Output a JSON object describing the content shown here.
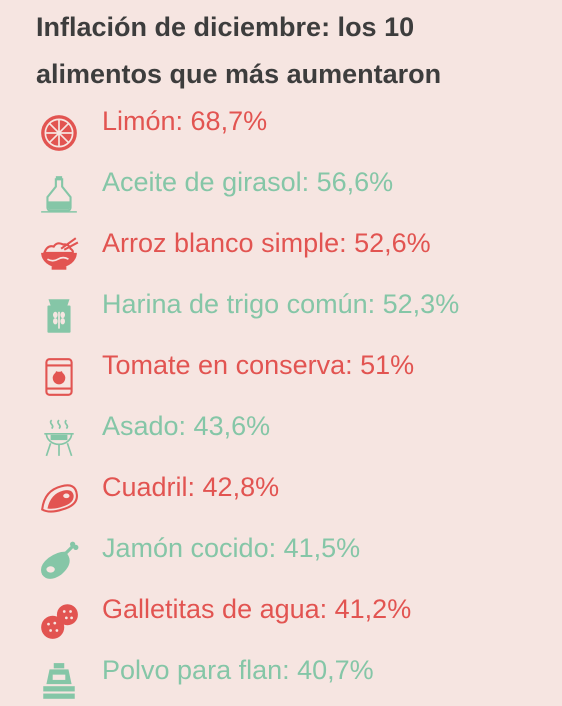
{
  "title": "Inflación de diciembre: los 10 alimentos que más aumentaron",
  "colors": {
    "red": "#e25451",
    "green": "#85c6a7",
    "title": "#3d3d3d",
    "background": "#f6e5e1"
  },
  "items": [
    {
      "label": "Limón: 68,7%",
      "icon": "lemon-slice-icon",
      "color": "red"
    },
    {
      "label": "Aceite de girasol: 56,6%",
      "icon": "oil-bottle-icon",
      "color": "green"
    },
    {
      "label": "Arroz blanco simple: 52,6%",
      "icon": "rice-bowl-icon",
      "color": "red"
    },
    {
      "label": "Harina de trigo común: 52,3%",
      "icon": "flour-bag-icon",
      "color": "green"
    },
    {
      "label": "Tomate en conserva: 51%",
      "icon": "canned-tomato-icon",
      "color": "red"
    },
    {
      "label": "Asado: 43,6%",
      "icon": "grill-icon",
      "color": "green"
    },
    {
      "label": "Cuadril: 42,8%",
      "icon": "steak-icon",
      "color": "red"
    },
    {
      "label": "Jamón cocido: 41,5%",
      "icon": "ham-icon",
      "color": "green"
    },
    {
      "label": "Galletitas de agua: 41,2%",
      "icon": "crackers-icon",
      "color": "red"
    },
    {
      "label": "Polvo para flan: 40,7%",
      "icon": "flan-icon",
      "color": "green"
    }
  ]
}
